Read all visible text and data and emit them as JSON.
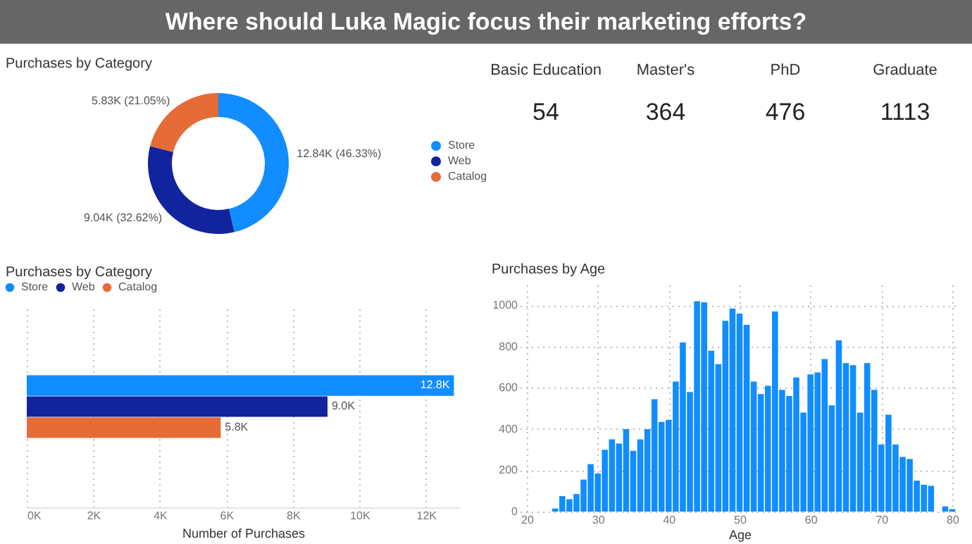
{
  "chart_data": [
    {
      "type": "other",
      "title": "Where should Luka Magic focus their marketing efforts?",
      "categories": [
        "Basic Education",
        "Master's",
        "PhD",
        "Graduate"
      ],
      "values": [
        54,
        364,
        476,
        1113
      ],
      "data_labels": true
    },
    {
      "type": "donut",
      "title": "Purchases by Category",
      "categories": [
        "Store",
        "Web",
        "Catalog"
      ],
      "values": [
        12840,
        9040,
        5830
      ],
      "colors": [
        "#118dff",
        "#12239e",
        "#e66c37"
      ],
      "value_labels": [
        "12.84K (46.33%)",
        "9.04K (32.62%)",
        "5.83K (21.05%)"
      ],
      "legend": "right"
    },
    {
      "type": "bar",
      "title": "Purchases by Category",
      "orientation": "horizontal",
      "categories": [
        null
      ],
      "series": [
        {
          "name": "Store",
          "color": "#118dff",
          "values": [
            12840
          ],
          "value_labels": [
            "12.8K"
          ]
        },
        {
          "name": "Web",
          "color": "#12239e",
          "values": [
            9040
          ],
          "value_labels": [
            "9.0K"
          ]
        },
        {
          "name": "Catalog",
          "color": "#e66c37",
          "values": [
            5830
          ],
          "value_labels": [
            "5.8K"
          ]
        }
      ],
      "xlim": [
        0,
        13000
      ],
      "xticks": [
        {
          "value": 0,
          "label": "0K"
        },
        {
          "value": 2000,
          "label": "2K"
        },
        {
          "value": 4000,
          "label": "4K"
        },
        {
          "value": 6000,
          "label": "6K"
        },
        {
          "value": 8000,
          "label": "8K"
        },
        {
          "value": 10000,
          "label": "10K"
        },
        {
          "value": 12000,
          "label": "12K"
        }
      ],
      "xlabel": "Number of Purchases",
      "legend": "top left",
      "grid": "x",
      "tick_labels": "x"
    },
    {
      "type": "bar",
      "title": "Purchases by Age",
      "xlabel": "Age",
      "color": "#118dff",
      "x": [
        24,
        25,
        26,
        27,
        28,
        29,
        30,
        31,
        32,
        33,
        34,
        35,
        36,
        37,
        38,
        39,
        40,
        41,
        42,
        43,
        44,
        45,
        46,
        47,
        48,
        49,
        50,
        51,
        52,
        53,
        54,
        55,
        56,
        57,
        58,
        59,
        60,
        61,
        62,
        63,
        64,
        65,
        66,
        67,
        68,
        69,
        70,
        71,
        72,
        73,
        74,
        75,
        76,
        77,
        79,
        80
      ],
      "values": [
        15,
        75,
        60,
        85,
        155,
        230,
        185,
        300,
        350,
        330,
        400,
        295,
        350,
        400,
        545,
        435,
        445,
        630,
        820,
        580,
        1020,
        1015,
        780,
        715,
        925,
        985,
        960,
        905,
        630,
        570,
        610,
        970,
        590,
        560,
        650,
        480,
        665,
        675,
        740,
        515,
        830,
        720,
        710,
        480,
        720,
        590,
        325,
        470,
        325,
        265,
        255,
        150,
        130,
        125,
        25,
        12
      ],
      "xlim": [
        20,
        80
      ],
      "xticks": [
        20,
        30,
        40,
        50,
        60,
        70,
        80
      ],
      "ylim": [
        0,
        1100
      ],
      "yticks": [
        0,
        200,
        400,
        600,
        800,
        1000
      ],
      "grid": true
    }
  ]
}
